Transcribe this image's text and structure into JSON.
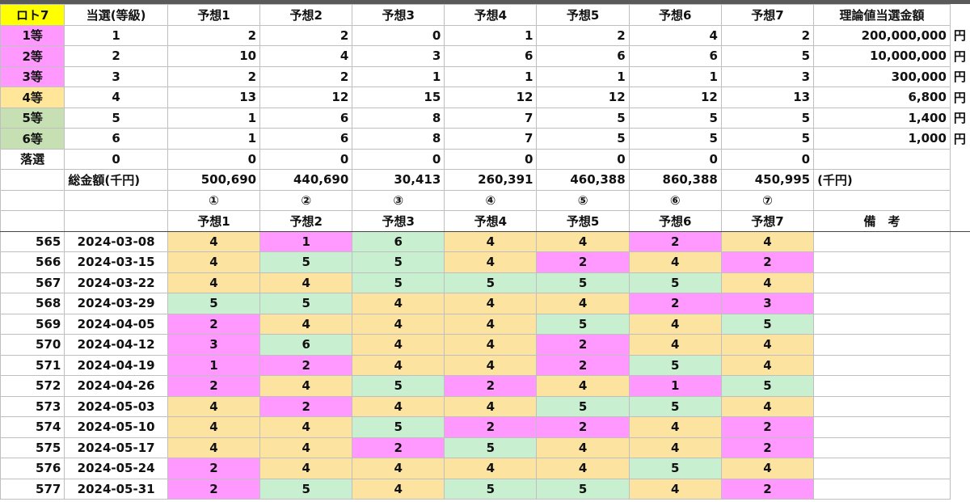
{
  "colors": {
    "rank1": "#ff99ff",
    "rank2": "#ff99ff",
    "rank3": "#ff99ff",
    "rank4": "#ffe699",
    "rank5": "#c6e0b4",
    "rank6": "#c6e0b4",
    "loto_label": "#ffff00",
    "cell_yellow": "#fce4a0",
    "cell_green": "#c8efcf",
    "cell_pink": "#ff99ff"
  },
  "header": {
    "loto": "ロト7",
    "rank_col": "当選(等級)",
    "predictions": [
      "予想1",
      "予想2",
      "予想3",
      "予想4",
      "予想5",
      "予想6",
      "予想7"
    ],
    "theory": "理論値当選金額"
  },
  "ranks": [
    {
      "label": "1等",
      "rank": "1",
      "values": [
        "2",
        "2",
        "0",
        "1",
        "2",
        "4",
        "2"
      ],
      "amount": "200,000,000",
      "unit": "円"
    },
    {
      "label": "2等",
      "rank": "2",
      "values": [
        "10",
        "4",
        "3",
        "6",
        "6",
        "6",
        "5"
      ],
      "amount": "10,000,000",
      "unit": "円"
    },
    {
      "label": "3等",
      "rank": "3",
      "values": [
        "2",
        "2",
        "1",
        "1",
        "1",
        "1",
        "3"
      ],
      "amount": "300,000",
      "unit": "円"
    },
    {
      "label": "4等",
      "rank": "4",
      "values": [
        "13",
        "12",
        "15",
        "12",
        "12",
        "12",
        "13"
      ],
      "amount": "6,800",
      "unit": "円"
    },
    {
      "label": "5等",
      "rank": "5",
      "values": [
        "1",
        "6",
        "8",
        "7",
        "5",
        "5",
        "5"
      ],
      "amount": "1,400",
      "unit": "円"
    },
    {
      "label": "6等",
      "rank": "6",
      "values": [
        "1",
        "6",
        "8",
        "7",
        "5",
        "5",
        "5"
      ],
      "amount": "1,000",
      "unit": "円"
    },
    {
      "label": "落選",
      "rank": "0",
      "values": [
        "0",
        "0",
        "0",
        "0",
        "0",
        "0",
        "0"
      ],
      "amount": "",
      "unit": ""
    }
  ],
  "totals": {
    "label": "総金額(千円)",
    "values": [
      "500,690",
      "440,690",
      "30,413",
      "260,391",
      "460,388",
      "860,388",
      "450,995"
    ],
    "unit": "(千円)"
  },
  "circled": [
    "①",
    "②",
    "③",
    "④",
    "⑤",
    "⑥",
    "⑦"
  ],
  "sub_header": {
    "predictions": [
      "予想1",
      "予想2",
      "予想3",
      "予想4",
      "予想5",
      "予想6",
      "予想7"
    ],
    "notes": "備　考"
  },
  "draws": [
    {
      "no": "565",
      "date": "2024-03-08",
      "results": [
        "4",
        "1",
        "6",
        "4",
        "4",
        "2",
        "4"
      ]
    },
    {
      "no": "566",
      "date": "2024-03-15",
      "results": [
        "4",
        "5",
        "5",
        "4",
        "2",
        "4",
        "2"
      ]
    },
    {
      "no": "567",
      "date": "2024-03-22",
      "results": [
        "4",
        "4",
        "5",
        "5",
        "5",
        "5",
        "4"
      ]
    },
    {
      "no": "568",
      "date": "2024-03-29",
      "results": [
        "5",
        "5",
        "4",
        "4",
        "4",
        "2",
        "3"
      ]
    },
    {
      "no": "569",
      "date": "2024-04-05",
      "results": [
        "2",
        "4",
        "4",
        "4",
        "5",
        "4",
        "5"
      ]
    },
    {
      "no": "570",
      "date": "2024-04-12",
      "results": [
        "3",
        "6",
        "4",
        "4",
        "2",
        "4",
        "4"
      ]
    },
    {
      "no": "571",
      "date": "2024-04-19",
      "results": [
        "1",
        "2",
        "4",
        "4",
        "2",
        "5",
        "4"
      ]
    },
    {
      "no": "572",
      "date": "2024-04-26",
      "results": [
        "2",
        "4",
        "5",
        "2",
        "4",
        "1",
        "5"
      ]
    },
    {
      "no": "573",
      "date": "2024-05-03",
      "results": [
        "4",
        "2",
        "4",
        "4",
        "5",
        "5",
        "4"
      ]
    },
    {
      "no": "574",
      "date": "2024-05-10",
      "results": [
        "4",
        "4",
        "5",
        "2",
        "2",
        "4",
        "2"
      ]
    },
    {
      "no": "575",
      "date": "2024-05-17",
      "results": [
        "4",
        "4",
        "2",
        "5",
        "4",
        "4",
        "2"
      ]
    },
    {
      "no": "576",
      "date": "2024-05-24",
      "results": [
        "2",
        "4",
        "4",
        "4",
        "4",
        "5",
        "4"
      ]
    },
    {
      "no": "577",
      "date": "2024-05-31",
      "results": [
        "2",
        "5",
        "4",
        "5",
        "5",
        "4",
        "2"
      ]
    }
  ]
}
